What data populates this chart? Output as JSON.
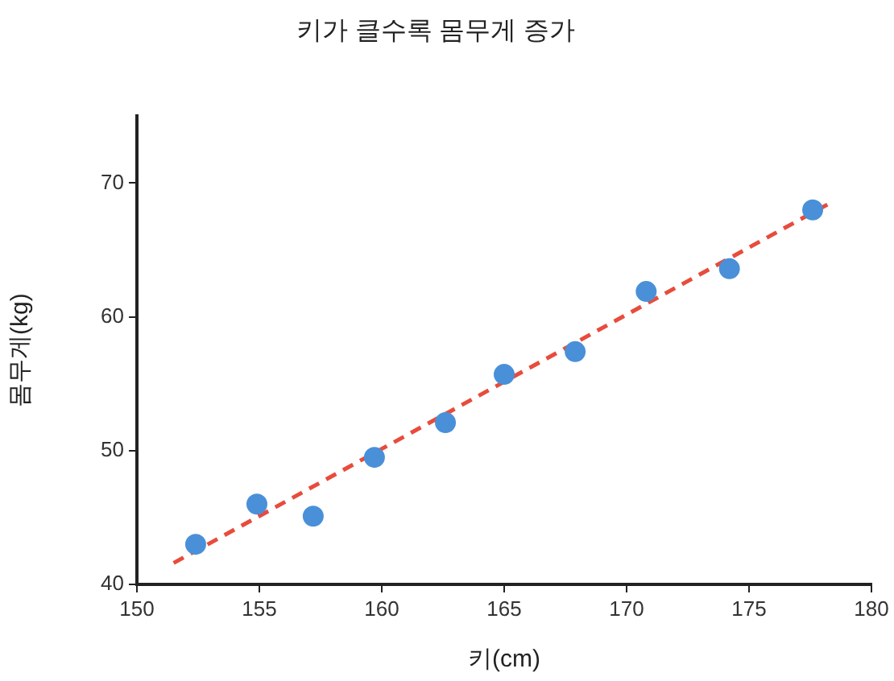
{
  "chart_data": {
    "type": "scatter",
    "title": "키가 클수록 몸무게 증가",
    "xlabel": "키(cm)",
    "ylabel": "몸무게(kg)",
    "xlim": [
      150,
      180
    ],
    "xticks": [
      150,
      155,
      160,
      165,
      170,
      175,
      180
    ],
    "ylim": [
      40,
      75
    ],
    "yticks": [
      40,
      50,
      60,
      70
    ],
    "grid": false,
    "legend": false,
    "series": [
      {
        "marker": "circle",
        "color": "#4a90d9",
        "x": [
          152.4,
          154.9,
          157.2,
          159.7,
          162.6,
          165.0,
          167.9,
          170.8,
          174.2,
          177.6
        ],
        "values": [
          43.0,
          46.0,
          45.1,
          49.5,
          52.1,
          55.7,
          57.4,
          61.9,
          63.6,
          68.0
        ]
      },
      {
        "type": "line",
        "color": "#e74c3c",
        "line_style": "dashed",
        "marker": "none",
        "x": [
          151.5,
          178.2
        ],
        "values": [
          41.6,
          68.4
        ]
      }
    ]
  }
}
